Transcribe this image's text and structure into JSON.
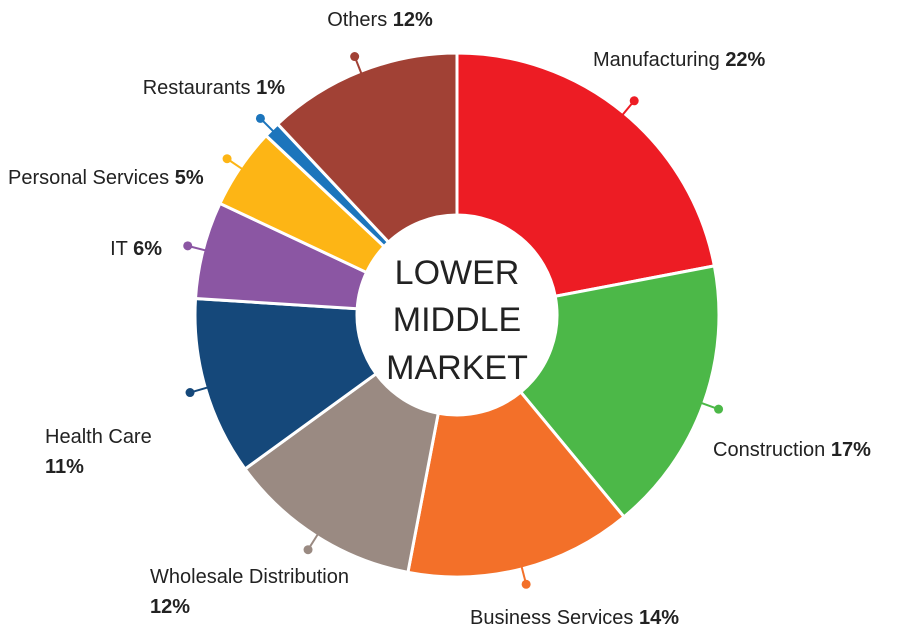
{
  "chart_data": {
    "type": "donut",
    "center_label": [
      "LOWER",
      "MIDDLE",
      "MARKET"
    ],
    "categories": [
      "Manufacturing",
      "Construction",
      "Business Services",
      "Wholesale Distribution",
      "Health Care",
      "IT",
      "Personal Services",
      "Restaurants",
      "Others"
    ],
    "values": [
      22,
      17,
      14,
      12,
      11,
      6,
      5,
      1,
      12
    ],
    "value_labels": [
      "22%",
      "17%",
      "14%",
      "12%",
      "11%",
      "6%",
      "5%",
      "1%",
      "12%"
    ],
    "colors": [
      "#ed1c24",
      "#4cb848",
      "#f37029",
      "#9a8a82",
      "#15487a",
      "#8b56a3",
      "#fdb515",
      "#1c75bc",
      "#a14135"
    ]
  }
}
